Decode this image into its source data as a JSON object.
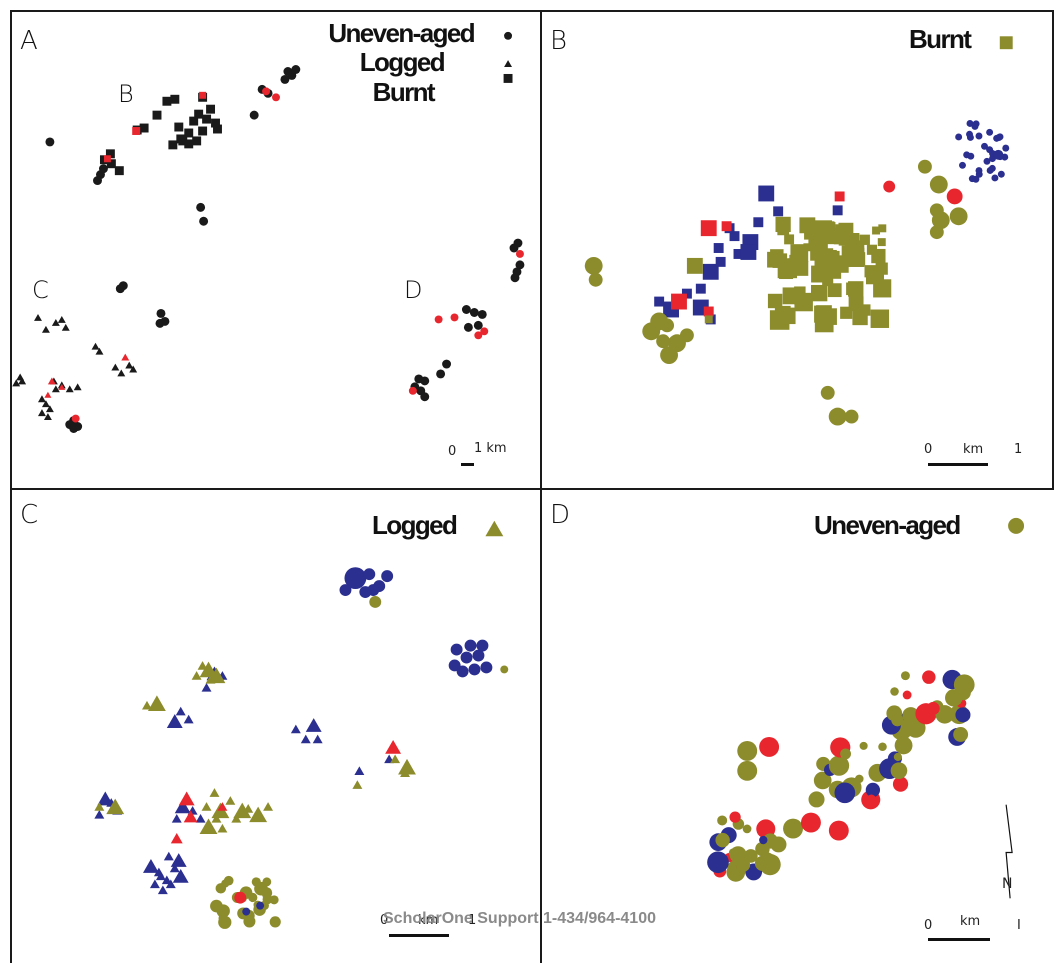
{
  "colors": {
    "black": "#1a1a1a",
    "red": "#e8262e",
    "blue": "#2b2f8f",
    "olive": "#8c8c2c"
  },
  "panels": {
    "A": {
      "letter": "A",
      "legend": [
        {
          "label": "Uneven-aged",
          "symbol": "circle"
        },
        {
          "label": "Logged",
          "symbol": "triangle"
        },
        {
          "label": "Burnt",
          "symbol": "square"
        }
      ],
      "region_labels": [
        "B",
        "C",
        "D"
      ],
      "scale": {
        "zero": "0",
        "label": "1 km"
      }
    },
    "B": {
      "letter": "B",
      "legend": {
        "label": "Burnt",
        "symbol": "square"
      },
      "scale": {
        "zero": "0",
        "unit": "km",
        "one": "1"
      }
    },
    "C": {
      "letter": "C",
      "legend": {
        "label": "Logged",
        "symbol": "triangle"
      },
      "scale": {
        "zero": "0",
        "unit": "km",
        "one": "1"
      }
    },
    "D": {
      "letter": "D",
      "legend": {
        "label": "Uneven-aged",
        "symbol": "circle"
      },
      "scale": {
        "zero": "0",
        "unit": "km",
        "one": "I"
      },
      "north_label": "N"
    }
  },
  "watermark": "ScholarOne Support 1-434/964-4100"
}
